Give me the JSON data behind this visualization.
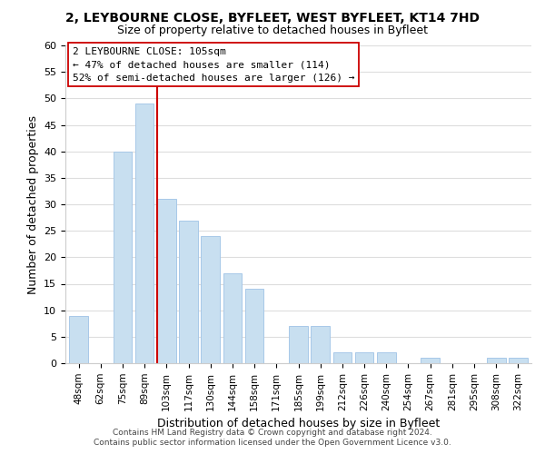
{
  "title": "2, LEYBOURNE CLOSE, BYFLEET, WEST BYFLEET, KT14 7HD",
  "subtitle": "Size of property relative to detached houses in Byfleet",
  "xlabel": "Distribution of detached houses by size in Byfleet",
  "ylabel": "Number of detached properties",
  "bar_color": "#c8dff0",
  "bar_edge_color": "#a8c8e8",
  "vline_color": "#cc0000",
  "bin_labels": [
    "48sqm",
    "62sqm",
    "75sqm",
    "89sqm",
    "103sqm",
    "117sqm",
    "130sqm",
    "144sqm",
    "158sqm",
    "171sqm",
    "185sqm",
    "199sqm",
    "212sqm",
    "226sqm",
    "240sqm",
    "254sqm",
    "267sqm",
    "281sqm",
    "295sqm",
    "308sqm",
    "322sqm"
  ],
  "bar_heights": [
    9,
    0,
    40,
    49,
    31,
    27,
    24,
    17,
    14,
    0,
    7,
    7,
    2,
    2,
    2,
    0,
    1,
    0,
    0,
    1,
    1
  ],
  "vline_index": 4,
  "ylim": [
    0,
    60
  ],
  "yticks": [
    0,
    5,
    10,
    15,
    20,
    25,
    30,
    35,
    40,
    45,
    50,
    55,
    60
  ],
  "annotation_title": "2 LEYBOURNE CLOSE: 105sqm",
  "annotation_line1": "← 47% of detached houses are smaller (114)",
  "annotation_line2": "52% of semi-detached houses are larger (126) →",
  "footer_line1": "Contains HM Land Registry data © Crown copyright and database right 2024.",
  "footer_line2": "Contains public sector information licensed under the Open Government Licence v3.0.",
  "background_color": "#ffffff",
  "grid_color": "#dddddd"
}
